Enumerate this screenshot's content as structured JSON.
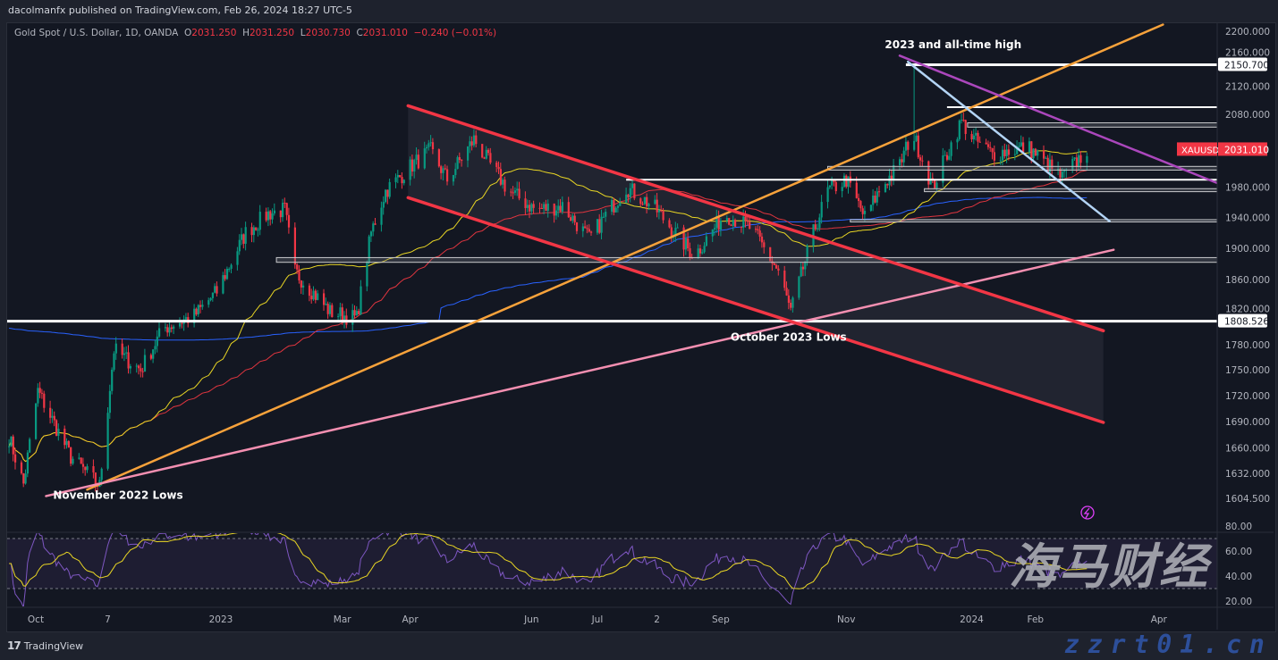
{
  "header": {
    "publisher": "dacolmanfx published on TradingView.com, Feb 26, 2024 18:27 UTC-5"
  },
  "legend": {
    "symbol": "Gold Spot / U.S. Dollar, 1D, OANDA",
    "open_label": "O",
    "open": "2031.250",
    "high_label": "H",
    "high": "2031.250",
    "low_label": "L",
    "low": "2030.730",
    "close_label": "C",
    "close": "2031.010",
    "change": "−0.240 (−0.01%)"
  },
  "price_badge": {
    "symbol": "XAUUSD",
    "price": "2031.010",
    "color": "#f23645"
  },
  "footer": {
    "logo_text": "TradingView",
    "logo_mark": "17"
  },
  "watermark": {
    "text": "海马财经",
    "url": "zzrt01.cn"
  },
  "colors": {
    "background": "#131722",
    "up": "#089981",
    "down": "#f23645",
    "sma_fast": "#e9d624",
    "sma_mid": "#e0353f",
    "sma_slow": "#2962ff",
    "rsi": "#7e57c2",
    "rsi_ma": "#e9d624"
  },
  "chart_data": {
    "type": "candlestick",
    "y_scale": "log",
    "ylim": [
      1590,
      2215
    ],
    "y_ticks": [
      "2200.000",
      "2160.000",
      "2120.000",
      "2080.000",
      "1980.000",
      "1940.000",
      "1900.000",
      "1860.000",
      "1820.000",
      "1780.000",
      "1750.000",
      "1720.000",
      "1690.000",
      "1660.000",
      "1632.000",
      "1604.500"
    ],
    "x_ticks": [
      {
        "label": "Oct",
        "date": "2022-10-03"
      },
      {
        "label": "7",
        "date": "2022-11-07"
      },
      {
        "label": "2023",
        "date": "2023-01-01"
      },
      {
        "label": "Mar",
        "date": "2023-03-01"
      },
      {
        "label": "Apr",
        "date": "2023-04-03"
      },
      {
        "label": "Jun",
        "date": "2023-06-01"
      },
      {
        "label": "Jul",
        "date": "2023-07-03"
      },
      {
        "label": "2",
        "date": "2023-08-01"
      },
      {
        "label": "Sep",
        "date": "2023-09-01"
      },
      {
        "label": "Nov",
        "date": "2023-11-01"
      },
      {
        "label": "2024",
        "date": "2024-01-01"
      },
      {
        "label": "Feb",
        "date": "2024-02-01"
      },
      {
        "label": "Apr",
        "date": "2024-04-01"
      }
    ],
    "close_path": [
      [
        "2022-09-20",
        1672
      ],
      [
        "2022-09-27",
        1620
      ],
      [
        "2022-10-04",
        1725
      ],
      [
        "2022-10-20",
        1650
      ],
      [
        "2022-11-03",
        1618
      ],
      [
        "2022-11-10",
        1774
      ],
      [
        "2022-11-23",
        1750
      ],
      [
        "2022-12-04",
        1800
      ],
      [
        "2022-12-19",
        1815
      ],
      [
        "2022-12-30",
        1845
      ],
      [
        "2023-01-13",
        1920
      ],
      [
        "2023-01-24",
        1945
      ],
      [
        "2023-02-01",
        1950
      ],
      [
        "2023-02-06",
        1870
      ],
      [
        "2023-02-23",
        1820
      ],
      [
        "2023-03-08",
        1812
      ],
      [
        "2023-03-15",
        1920
      ],
      [
        "2023-03-22",
        1975
      ],
      [
        "2023-04-04",
        2010
      ],
      [
        "2023-04-13",
        2030
      ],
      [
        "2023-04-21",
        1990
      ],
      [
        "2023-05-04",
        2045
      ],
      [
        "2023-05-12",
        2010
      ],
      [
        "2023-05-21",
        1975
      ],
      [
        "2023-06-03",
        1950
      ],
      [
        "2023-06-16",
        1955
      ],
      [
        "2023-06-29",
        1912
      ],
      [
        "2023-07-17",
        1980
      ],
      [
        "2023-07-30",
        1955
      ],
      [
        "2023-08-19",
        1890
      ],
      [
        "2023-09-03",
        1945
      ],
      [
        "2023-09-16",
        1925
      ],
      [
        "2023-09-29",
        1870
      ],
      [
        "2023-10-05",
        1820
      ],
      [
        "2023-10-16",
        1920
      ],
      [
        "2023-10-23",
        1975
      ],
      [
        "2023-11-01",
        1990
      ],
      [
        "2023-11-10",
        1940
      ],
      [
        "2023-11-18",
        1980
      ],
      [
        "2023-11-27",
        2010
      ],
      [
        "2023-12-03",
        2055
      ],
      [
        "2023-12-13",
        1980
      ],
      [
        "2023-12-27",
        2070
      ],
      [
        "2024-01-02",
        2045
      ],
      [
        "2024-01-11",
        2025
      ],
      [
        "2024-01-28",
        2035
      ],
      [
        "2024-02-14",
        1992
      ],
      [
        "2024-02-26",
        2031
      ]
    ],
    "all_time_high": {
      "date": "2023-12-04",
      "price": 2150.7
    },
    "indicators": [
      "SMA (fast)",
      "SMA (mid)",
      "SMA (slow)",
      "RSI 14 with MA"
    ],
    "rsi": {
      "ylim": [
        0,
        100
      ],
      "levels": [
        70,
        30
      ],
      "y_ticks": [
        "80.00",
        "60.00",
        "40.00",
        "20.00"
      ]
    },
    "horizontal_levels": [
      {
        "price": 2150.7,
        "from": "2023-11-30",
        "label": "2150.700",
        "style": "white"
      },
      {
        "price": 2090,
        "from": "2023-12-20",
        "style": "white"
      },
      {
        "price": 2068,
        "price2": 2062,
        "from": "2023-12-30",
        "style": "zone"
      },
      {
        "price": 2008,
        "price2": 2003,
        "from": "2023-10-23",
        "style": "zone"
      },
      {
        "price": 1990,
        "from": "2023-07-17",
        "style": "white"
      },
      {
        "price": 1978,
        "price2": 1974,
        "from": "2023-12-09",
        "style": "zone"
      },
      {
        "price": 1937,
        "price2": 1934,
        "from": "2023-11-03",
        "style": "zone"
      },
      {
        "price": 1888,
        "price2": 1882,
        "from": "2023-01-28",
        "style": "zone"
      },
      {
        "price": 1808.526,
        "from": "2022-09-15",
        "label": "1808.526",
        "style": "white"
      }
    ],
    "trendlines": [
      {
        "color": "#f7a23b",
        "from": [
          "2022-10-28",
          1614
        ],
        "to": [
          "2024-04-03",
          2210
        ]
      },
      {
        "color": "#f48fb1",
        "from": [
          "2022-10-08",
          1607
        ],
        "to": [
          "2024-03-10",
          1898
        ]
      },
      {
        "color": "#f23645",
        "from": [
          "2023-04-02",
          2092
        ],
        "to": [
          "2024-03-05",
          1797
        ]
      },
      {
        "color": "#f23645",
        "from": [
          "2023-04-02",
          1966
        ],
        "to": [
          "2024-03-05",
          1689
        ]
      },
      {
        "color": "#ab47bc",
        "from": [
          "2023-11-27",
          2164
        ],
        "to": [
          "2024-05-29",
          1953
        ]
      },
      {
        "color": "#b3d4f5",
        "from": [
          "2023-12-01",
          2155
        ],
        "to": [
          "2024-03-08",
          1935
        ]
      }
    ],
    "annotations": [
      {
        "text": "2023 and all-time high",
        "date": "2023-12-23",
        "price": 2175
      },
      {
        "text": "October 2023 Lows",
        "date": "2023-10-04",
        "price": 1785
      },
      {
        "text": "November 2022 Lows",
        "date": "2022-11-12",
        "price": 1604
      }
    ]
  }
}
